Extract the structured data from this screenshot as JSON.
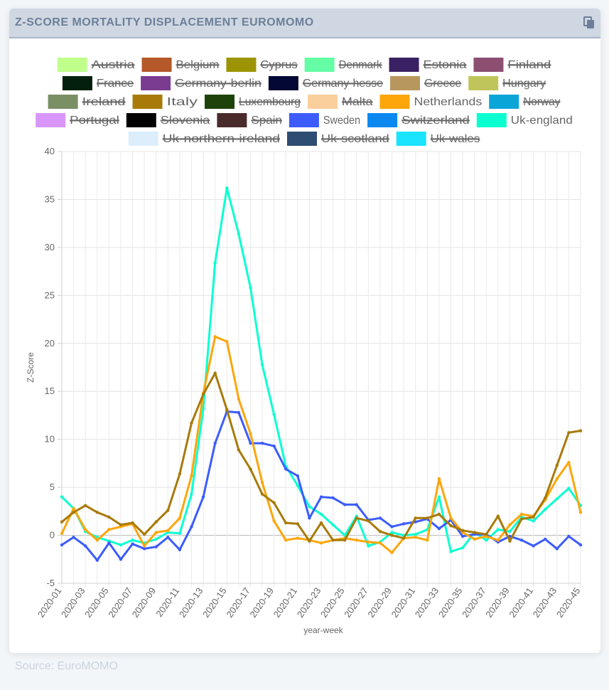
{
  "header": {
    "title": "Z-SCORE MORTALITY DISPLACEMENT EUROMOMO",
    "copy_icon": "copy-icon"
  },
  "footer": {
    "source": "Source: EuroMOMO"
  },
  "chart_data": {
    "type": "line",
    "title": "",
    "xlabel": "year-week",
    "ylabel": "Z-Score",
    "ylim": [
      -5,
      40
    ],
    "yticks": [
      -5,
      0,
      5,
      10,
      15,
      20,
      25,
      30,
      35,
      40
    ],
    "grid": true,
    "legend_position": "top",
    "categories": [
      "2020-01",
      "2020-02",
      "2020-03",
      "2020-04",
      "2020-05",
      "2020-06",
      "2020-07",
      "2020-08",
      "2020-09",
      "2020-10",
      "2020-11",
      "2020-12",
      "2020-13",
      "2020-14",
      "2020-15",
      "2020-16",
      "2020-17",
      "2020-18",
      "2020-19",
      "2020-20",
      "2020-21",
      "2020-22",
      "2020-23",
      "2020-24",
      "2020-25",
      "2020-26",
      "2020-27",
      "2020-28",
      "2020-29",
      "2020-30",
      "2020-31",
      "2020-32",
      "2020-33",
      "2020-34",
      "2020-35",
      "2020-36",
      "2020-37",
      "2020-38",
      "2020-39",
      "2020-40",
      "2020-41",
      "2020-42",
      "2020-43",
      "2020-44",
      "2020-45"
    ],
    "legend": [
      {
        "name": "Austria",
        "color": "#c1ff8c",
        "hidden": true
      },
      {
        "name": "Belgium",
        "color": "#b5582a",
        "hidden": true
      },
      {
        "name": "Cyprus",
        "color": "#9c9404",
        "hidden": true
      },
      {
        "name": "Denmark",
        "color": "#64fca4",
        "hidden": true
      },
      {
        "name": "Estonia",
        "color": "#3a2163",
        "hidden": true
      },
      {
        "name": "Finland",
        "color": "#8c4f72",
        "hidden": true
      },
      {
        "name": "France",
        "color": "#03200c",
        "hidden": true
      },
      {
        "name": "Germany-berlin",
        "color": "#7a3c90",
        "hidden": true
      },
      {
        "name": "Germany-hesse",
        "color": "#030834",
        "hidden": true
      },
      {
        "name": "Greece",
        "color": "#b8975f",
        "hidden": true
      },
      {
        "name": "Hungary",
        "color": "#bfc55a",
        "hidden": true
      },
      {
        "name": "Ireland",
        "color": "#7b8f65",
        "hidden": true
      },
      {
        "name": "Italy",
        "color": "#a87a0a",
        "hidden": false
      },
      {
        "name": "Luxembourg",
        "color": "#1e430a",
        "hidden": true
      },
      {
        "name": "Malta",
        "color": "#facf9c",
        "hidden": true
      },
      {
        "name": "Netherlands",
        "color": "#fca60b",
        "hidden": false
      },
      {
        "name": "Norway",
        "color": "#0ca5d8",
        "hidden": true
      },
      {
        "name": "Portugal",
        "color": "#d996fa",
        "hidden": true
      },
      {
        "name": "Slovenia",
        "color": "#030303",
        "hidden": true
      },
      {
        "name": "Spain",
        "color": "#4a2b2c",
        "hidden": true
      },
      {
        "name": "Sweden",
        "color": "#3c5cfc",
        "hidden": false
      },
      {
        "name": "Switzerland",
        "color": "#0a88f0",
        "hidden": true
      },
      {
        "name": "Uk-england",
        "color": "#0affd0",
        "hidden": false
      },
      {
        "name": "Uk-northern-ireland",
        "color": "#dceefb",
        "hidden": true
      },
      {
        "name": "Uk-scotland",
        "color": "#2f4c72",
        "hidden": true
      },
      {
        "name": "Uk-wales",
        "color": "#1ae4ff",
        "hidden": true
      }
    ],
    "series": [
      {
        "name": "Uk-england",
        "color": "#0affd0",
        "values": [
          4.0,
          2.8,
          0.4,
          -0.2,
          -0.6,
          -1.0,
          -0.5,
          -0.8,
          -0.4,
          0.3,
          0.2,
          4.3,
          13.2,
          28.4,
          36.2,
          31.4,
          25.8,
          17.8,
          12.6,
          7.2,
          5.2,
          3.0,
          2.2,
          1.1,
          0.0,
          2.0,
          -1.1,
          -0.7,
          0.3,
          0.0,
          0.1,
          0.6,
          4.0,
          -1.7,
          -1.3,
          0.3,
          -0.5,
          0.6,
          0.4,
          1.9,
          1.5,
          2.7,
          3.8,
          4.9,
          3.1
        ]
      },
      {
        "name": "Sweden",
        "color": "#3c5cfc",
        "values": [
          -1.0,
          -0.2,
          -1.1,
          -2.6,
          -0.8,
          -2.5,
          -0.9,
          -1.4,
          -1.2,
          -0.2,
          -1.5,
          0.9,
          4.0,
          9.6,
          12.9,
          12.8,
          9.6,
          9.6,
          9.3,
          6.9,
          6.2,
          1.8,
          4.0,
          3.9,
          3.2,
          3.2,
          1.6,
          1.8,
          0.9,
          1.2,
          1.4,
          1.7,
          0.7,
          1.6,
          -0.1,
          0.1,
          0.1,
          -0.7,
          -0.1,
          -0.5,
          -1.1,
          -0.4,
          -1.4,
          -0.1,
          -1.0
        ]
      },
      {
        "name": "Netherlands",
        "color": "#fca60b",
        "values": [
          0.2,
          2.8,
          0.6,
          -0.5,
          0.6,
          0.9,
          1.2,
          -1.1,
          0.3,
          0.5,
          1.8,
          6.2,
          14.8,
          20.7,
          20.2,
          14.2,
          10.6,
          5.5,
          1.5,
          -0.5,
          -0.3,
          -0.5,
          -0.8,
          -0.5,
          -0.3,
          -0.5,
          -0.7,
          -0.8,
          -1.8,
          -0.3,
          -0.2,
          -0.5,
          5.9,
          1.8,
          0.3,
          -0.4,
          -0.1,
          -0.5,
          1.1,
          2.2,
          2.0,
          3.7,
          5.9,
          7.6,
          2.4
        ]
      },
      {
        "name": "Italy",
        "color": "#a87a0a",
        "values": [
          1.4,
          2.4,
          3.1,
          2.4,
          1.9,
          1.1,
          1.3,
          0.1,
          1.4,
          2.6,
          6.4,
          11.7,
          14.7,
          16.9,
          13.1,
          8.9,
          6.9,
          4.3,
          3.4,
          1.3,
          1.2,
          -0.6,
          1.3,
          -0.5,
          -0.5,
          1.8,
          1.5,
          0.4,
          0.0,
          -0.3,
          1.8,
          1.8,
          2.2,
          1.0,
          0.5,
          0.3,
          0.1,
          2.0,
          -0.6,
          1.7,
          1.9,
          3.9,
          7.3,
          10.7,
          10.9
        ]
      }
    ]
  }
}
